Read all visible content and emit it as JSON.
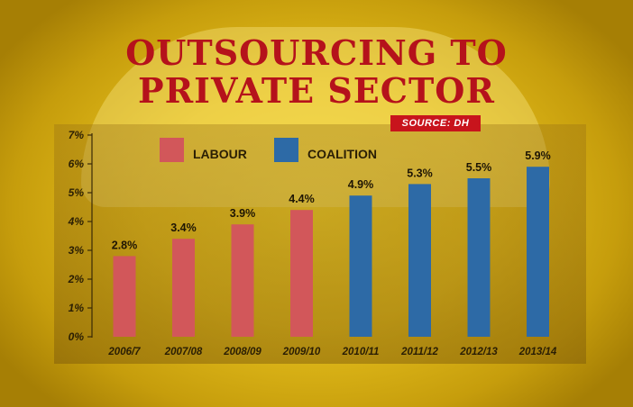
{
  "title_line1": "OUTSOURCING TO",
  "title_line2": "PRIVATE SECTOR",
  "source": "SOURCE: DH",
  "colors": {
    "labour": "#d2575a",
    "coalition": "#2d6aa6",
    "title": "#b5121b"
  },
  "chart_data": {
    "type": "bar",
    "categories": [
      "2006/7",
      "2007/08",
      "2008/09",
      "2009/10",
      "2010/11",
      "2011/12",
      "2012/13",
      "2013/14"
    ],
    "values": [
      2.8,
      3.4,
      3.9,
      4.4,
      4.9,
      5.3,
      5.5,
      5.9
    ],
    "value_labels": [
      "2.8%",
      "3.4%",
      "3.9%",
      "4.4%",
      "4.9%",
      "5.3%",
      "5.5%",
      "5.9%"
    ],
    "series_assignment": [
      "Labour",
      "Labour",
      "Labour",
      "Labour",
      "Coalition",
      "Coalition",
      "Coalition",
      "Coalition"
    ],
    "legend": [
      {
        "name": "LABOUR",
        "color": "#d2575a"
      },
      {
        "name": "COALITION",
        "color": "#2d6aa6"
      }
    ],
    "legend_position": "top-left",
    "y_ticks": [
      "0%",
      "1%",
      "2%",
      "3%",
      "4%",
      "5%",
      "6%",
      "7%"
    ],
    "ylim": [
      0,
      7
    ],
    "grid": false,
    "xlabel": "",
    "ylabel": "",
    "title": "OUTSOURCING TO PRIVATE SECTOR"
  }
}
